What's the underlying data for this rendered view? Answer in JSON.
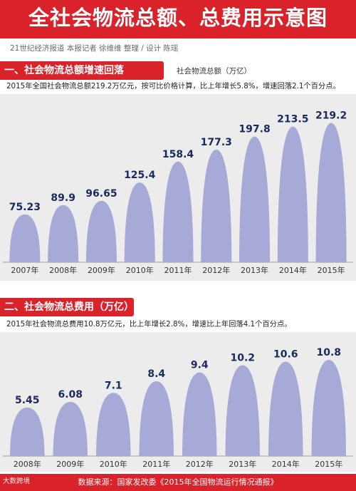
{
  "header": {
    "title": "全社会物流总额、总费用示意图",
    "byline": "21世纪经济报道 本报记者 徐维维 整理 / 设计 陈瑶"
  },
  "colors": {
    "accent": "#d9222a",
    "bar": "#a7a9d6",
    "value_text": "#1b2a5c"
  },
  "chart_data": [
    {
      "type": "bar",
      "title": "一、社会物流总额增速回落",
      "ylabel": "社会物流总额（万亿）",
      "description": "2015年全国社会物流总额219.2万亿元，按可比价格计算，比上年增长5.8%，增速回落2.1个百分点。",
      "categories": [
        "2007年",
        "2008年",
        "2009年",
        "2010年",
        "2011年",
        "2012年",
        "2013年",
        "2014年",
        "2015年"
      ],
      "values": [
        75.23,
        89.9,
        96.65,
        125.4,
        158.4,
        177.3,
        197.8,
        213.5,
        219.2
      ],
      "value_labels": [
        "75.23",
        "89.9",
        "96.65",
        "125.4",
        "158.4",
        "177.3",
        "197.8",
        "213.5",
        "219.2"
      ],
      "ylim": [
        0,
        240
      ]
    },
    {
      "type": "bar",
      "title": "二、社会物流总费用（万亿）",
      "description": "2015年社会物流总费用10.8万亿元，比上年增长2.8%，增速比上年回落4.1个百分点。",
      "categories": [
        "2008年",
        "2009年",
        "2010年",
        "2011年",
        "2012年",
        "2013年",
        "2014年",
        "2015年"
      ],
      "values": [
        5.45,
        6.08,
        7.1,
        8.4,
        9.4,
        10.2,
        10.6,
        10.8
      ],
      "value_labels": [
        "5.45",
        "6.08",
        "7.1",
        "8.4",
        "9.4",
        "10.2",
        "10.6",
        "10.8"
      ],
      "ylim": [
        0,
        12
      ]
    }
  ],
  "footer": {
    "source": "数据来源：国家发改委《2015年全国物流运行情况通报》",
    "watermark": "大数跨境"
  }
}
